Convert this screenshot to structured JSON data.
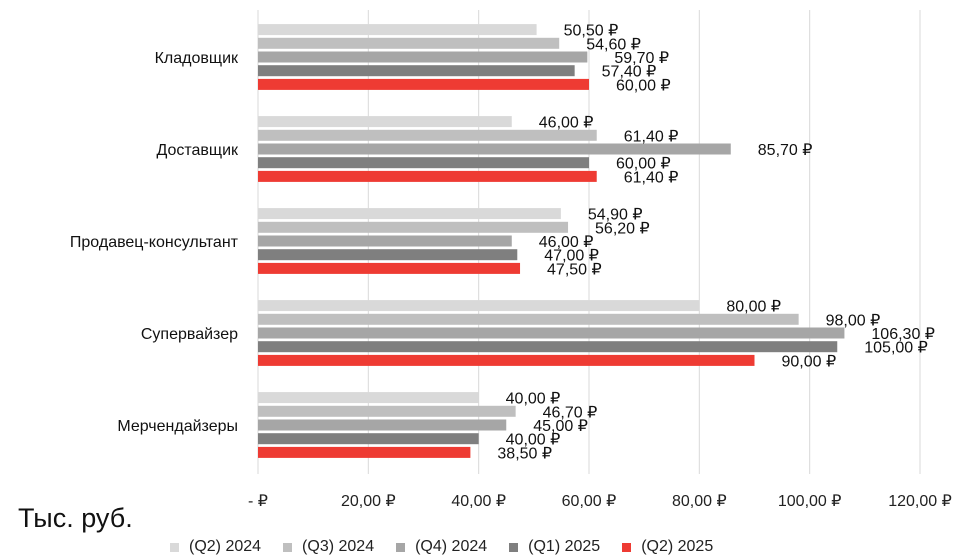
{
  "chart_data": {
    "type": "bar",
    "orientation": "horizontal",
    "categories": [
      "Кладовщик",
      "Доставщик",
      "Продавец-консультант",
      "Супервайзер",
      "Мерчендайзеры"
    ],
    "series": [
      {
        "name": "(Q2) 2024",
        "color": "#d9d9d9",
        "values": [
          50.5,
          46.0,
          54.9,
          80.0,
          40.0
        ],
        "labels": [
          "50,50 ₽",
          "46,00 ₽",
          "54,90 ₽",
          "80,00 ₽",
          "40,00 ₽"
        ]
      },
      {
        "name": "(Q3) 2024",
        "color": "#bfbfbf",
        "values": [
          54.6,
          61.4,
          56.2,
          98.0,
          46.7
        ],
        "labels": [
          "54,60 ₽",
          "61,40 ₽",
          "56,20 ₽",
          "98,00 ₽",
          "46,70 ₽"
        ]
      },
      {
        "name": "(Q4) 2024",
        "color": "#a6a6a6",
        "values": [
          59.7,
          85.7,
          46.0,
          106.3,
          45.0
        ],
        "labels": [
          "59,70 ₽",
          "85,70 ₽",
          "46,00 ₽",
          "106,30 ₽",
          "45,00 ₽"
        ]
      },
      {
        "name": "(Q1) 2025",
        "color": "#7f7f7f",
        "values": [
          57.4,
          60.0,
          47.0,
          105.0,
          40.0
        ],
        "labels": [
          "57,40 ₽",
          "60,00 ₽",
          "47,00 ₽",
          "105,00 ₽",
          "40,00 ₽"
        ]
      },
      {
        "name": "(Q2) 2025",
        "color": "#ee3b33",
        "values": [
          60.0,
          61.4,
          47.5,
          90.0,
          38.5
        ],
        "labels": [
          "60,00 ₽",
          "61,40 ₽",
          "47,50 ₽",
          "90,00 ₽",
          "38,50 ₽"
        ]
      }
    ],
    "xlim": [
      0,
      120
    ],
    "xticks": [
      0,
      20,
      40,
      60,
      80,
      100,
      120
    ],
    "xtick_labels": [
      "-  ₽",
      "20,00 ₽",
      "40,00 ₽",
      "60,00 ₽",
      "80,00 ₽",
      "100,00 ₽",
      "120,00 ₽"
    ],
    "grid": "vertical",
    "legend_position": "bottom",
    "unit_label": "Тыс. руб."
  }
}
